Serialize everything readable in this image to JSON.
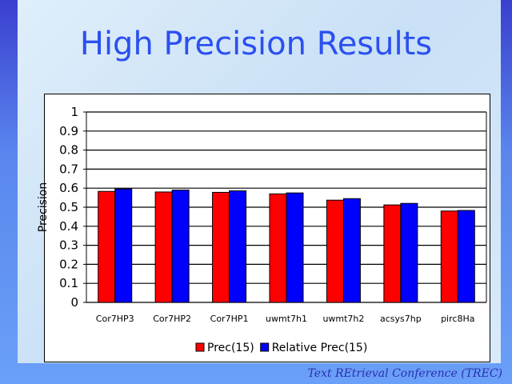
{
  "slide": {
    "title": "High Precision Results",
    "footer": "Text REtrieval Conference (TREC)"
  },
  "chart_data": {
    "type": "bar",
    "title": "",
    "xlabel": "",
    "ylabel": "Precision",
    "ylim": [
      0,
      1
    ],
    "yticks": [
      "0",
      "0.1",
      "0.2",
      "0.3",
      "0.4",
      "0.5",
      "0.6",
      "0.7",
      "0.8",
      "0.9",
      "1"
    ],
    "grid": true,
    "legend": "bottom",
    "categories": [
      "Cor7HP3",
      "Cor7HP2",
      "Cor7HP1",
      "uwmt7h1",
      "uwmt7h2",
      "acsys7hp",
      "pirc8Ha"
    ],
    "series": [
      {
        "name": "Prec(15)",
        "color": "#ff0000",
        "values": [
          0.583,
          0.58,
          0.578,
          0.57,
          0.537,
          0.512,
          0.48
        ]
      },
      {
        "name": "Relative Prec(15)",
        "color": "#0000ff",
        "values": [
          0.596,
          0.59,
          0.586,
          0.575,
          0.545,
          0.52,
          0.483
        ]
      }
    ]
  }
}
